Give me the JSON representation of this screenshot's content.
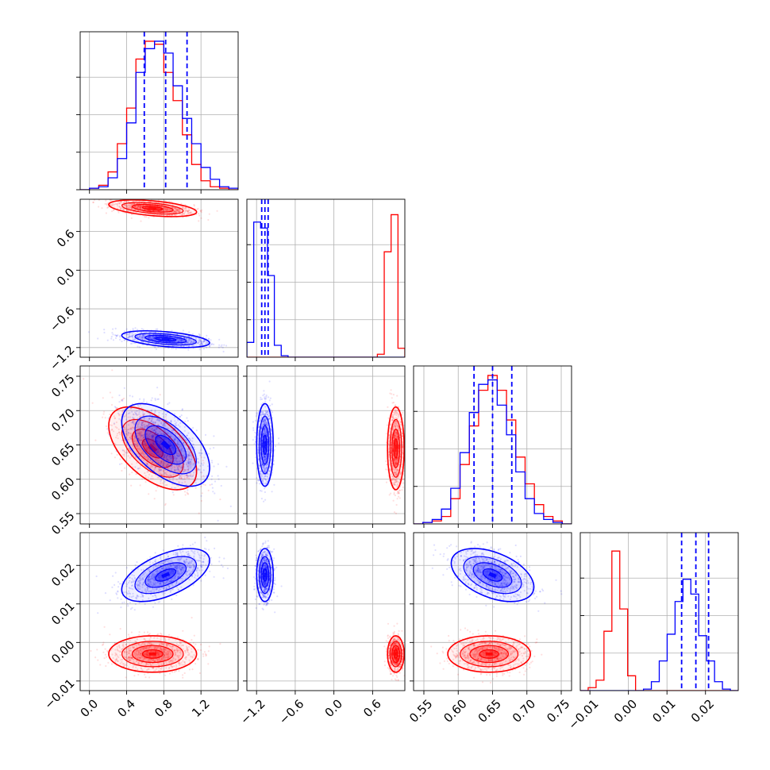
{
  "colors": {
    "red": "#ff0000",
    "blue": "#0000ff",
    "grid": "#b0b0b0"
  },
  "chart_data": {
    "type": "corner",
    "grid": true,
    "series": [
      {
        "color": "#ff0000",
        "means": [
          0.68,
          0.96,
          0.645,
          -0.003
        ],
        "sigmas": [
          0.22,
          0.06,
          0.028,
          0.0022
        ],
        "hist_heights": [
          [
            0.0,
            0.01,
            0.03,
            0.12,
            0.31,
            0.55,
            0.88,
            1.0,
            0.98,
            0.79,
            0.6,
            0.37,
            0.17,
            0.06,
            0.02,
            0.01,
            0.0
          ],
          [
            0.0,
            0.0,
            0.0,
            0.0,
            0.0,
            0.0,
            0.0,
            0.0,
            0.0,
            0.0,
            0.0,
            0.0,
            0.0,
            0.0,
            0.0,
            0.0,
            0.0,
            0.0,
            0.0,
            0.02,
            0.71,
            0.96,
            0.06
          ],
          [
            0.0,
            0.01,
            0.02,
            0.05,
            0.17,
            0.4,
            0.66,
            0.9,
            1.0,
            0.9,
            0.7,
            0.45,
            0.27,
            0.13,
            0.05,
            0.02,
            0.0
          ],
          [
            0.0,
            0.02,
            0.07,
            0.4,
            0.94,
            0.55,
            0.1,
            0.0,
            0.0,
            0.0,
            0.0,
            0.0,
            0.0,
            0.0,
            0.0,
            0.0,
            0.0,
            0.0,
            0.0,
            0.0
          ]
        ]
      },
      {
        "color": "#0000ff",
        "means": [
          0.82,
          -1.07,
          0.65,
          0.0175
        ],
        "sigmas": [
          0.22,
          0.06,
          0.028,
          0.0032
        ],
        "hist_heights": [
          [
            0.0,
            0.01,
            0.02,
            0.08,
            0.21,
            0.45,
            0.79,
            0.95,
            1.0,
            0.92,
            0.7,
            0.48,
            0.31,
            0.15,
            0.07,
            0.02,
            0.01
          ],
          [
            0.1,
            0.91,
            0.87,
            0.55,
            0.08,
            0.01,
            0.0,
            0.0,
            0.0,
            0.0,
            0.0,
            0.0,
            0.0,
            0.0,
            0.0,
            0.0,
            0.0,
            0.0,
            0.0,
            0.0,
            0.0,
            0.0,
            0.0
          ],
          [
            0.0,
            0.01,
            0.03,
            0.1,
            0.24,
            0.48,
            0.75,
            0.94,
            0.97,
            0.8,
            0.6,
            0.35,
            0.17,
            0.07,
            0.03,
            0.01,
            0.0
          ],
          [
            0.0,
            0.0,
            0.0,
            0.0,
            0.0,
            0.0,
            0.0,
            0.0,
            0.01,
            0.06,
            0.2,
            0.38,
            0.6,
            0.75,
            0.65,
            0.37,
            0.2,
            0.06,
            0.01,
            0.0
          ]
        ]
      }
    ],
    "quantiles": [
      [
        0.59,
        0.82,
        1.05
      ],
      [
        -1.12,
        -1.07,
        -1.02
      ],
      [
        0.623,
        0.65,
        0.678
      ],
      [
        0.0138,
        0.0175,
        0.0208
      ]
    ],
    "params": [
      {
        "range": [
          -0.1,
          1.6
        ],
        "hist_bins": 17,
        "ticks": [
          0.0,
          0.4,
          0.8,
          1.2
        ],
        "tick_labels": [
          "0.0",
          "0.4",
          "0.8",
          "1.2"
        ]
      },
      {
        "range": [
          -1.35,
          1.1
        ],
        "hist_bins": 23,
        "ticks": [
          -1.2,
          -0.6,
          0.0,
          0.6
        ],
        "tick_labels": [
          "−1.2",
          "−0.6",
          "0.0",
          "0.6"
        ]
      },
      {
        "range": [
          0.535,
          0.765
        ],
        "hist_bins": 17,
        "ticks": [
          0.55,
          0.6,
          0.65,
          0.7,
          0.75
        ],
        "tick_labels": [
          "0.55",
          "0.60",
          "0.65",
          "0.70",
          "0.75"
        ]
      },
      {
        "range": [
          -0.0125,
          0.0285
        ],
        "hist_bins": 20,
        "ticks": [
          -0.01,
          0.0,
          0.01,
          0.02
        ],
        "tick_labels": [
          "−0.01",
          "0.00",
          "0.01",
          "0.02"
        ]
      }
    ]
  }
}
